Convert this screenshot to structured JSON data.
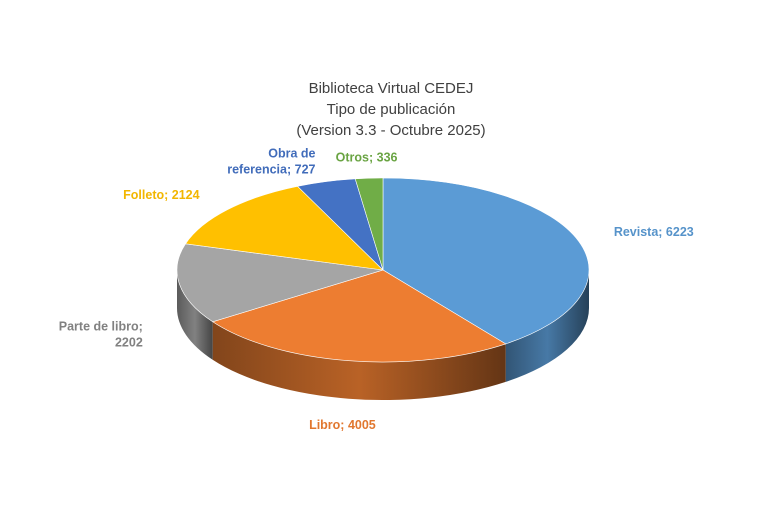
{
  "chart_data": {
    "type": "pie",
    "style": "3d",
    "title_lines": [
      "Biblioteca Virtual CEDEJ",
      "Tipo de publicación",
      "(Version 3.3 - Octubre 2025)"
    ],
    "slices": [
      {
        "name": "Revista",
        "value": 6223,
        "label": "Revista; 6223",
        "color": "#5B9BD5",
        "label_lines": [
          "Revista; 6223"
        ]
      },
      {
        "name": "Libro",
        "value": 4005,
        "label": "Libro; 4005",
        "color": "#ED7D31",
        "label_lines": [
          "Libro; 4005"
        ]
      },
      {
        "name": "Parte de libro",
        "value": 2202,
        "label": "Parte de libro; 2202",
        "color": "#A5A5A5",
        "label_lines": [
          "Parte de libro;",
          "2202"
        ]
      },
      {
        "name": "Folleto",
        "value": 2124,
        "label": "Folleto; 2124",
        "color": "#FFC000",
        "label_lines": [
          "Folleto; 2124"
        ]
      },
      {
        "name": "Obra de referencia",
        "value": 727,
        "label": "Obra de referencia; 727",
        "color": "#4472C4",
        "label_lines": [
          "Obra de",
          "referencia; 727"
        ]
      },
      {
        "name": "Otros",
        "value": 336,
        "label": "Otros; 336",
        "color": "#70AD47",
        "label_lines": [
          "Otros; 336"
        ]
      }
    ],
    "legend": "none"
  }
}
